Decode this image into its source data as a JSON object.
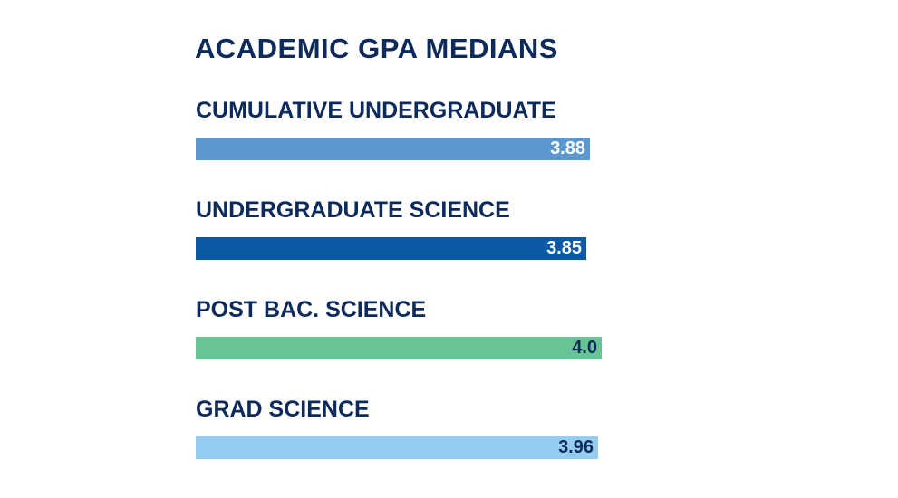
{
  "chart_data": {
    "type": "bar",
    "orientation": "horizontal",
    "title": "ACADEMIC GPA MEDIANS",
    "categories": [
      "CUMULATIVE UNDERGRADUATE",
      "UNDERGRADUATE SCIENCE",
      "POST BAC. SCIENCE",
      "GRAD SCIENCE"
    ],
    "values": [
      3.88,
      3.85,
      4.0,
      3.96
    ],
    "value_labels": [
      "3.88",
      "3.85",
      "4.0",
      "3.96"
    ],
    "bar_colors": [
      "#5b98d1",
      "#0b58a6",
      "#66c495",
      "#95cdf0"
    ],
    "value_label_colors": [
      "#ffffff",
      "#ffffff",
      "#0d2a5c",
      "#0d2a5c"
    ],
    "xlim": [
      0,
      4.0
    ],
    "grid": false,
    "legend": "none",
    "text_color": "#0d2a5c"
  }
}
